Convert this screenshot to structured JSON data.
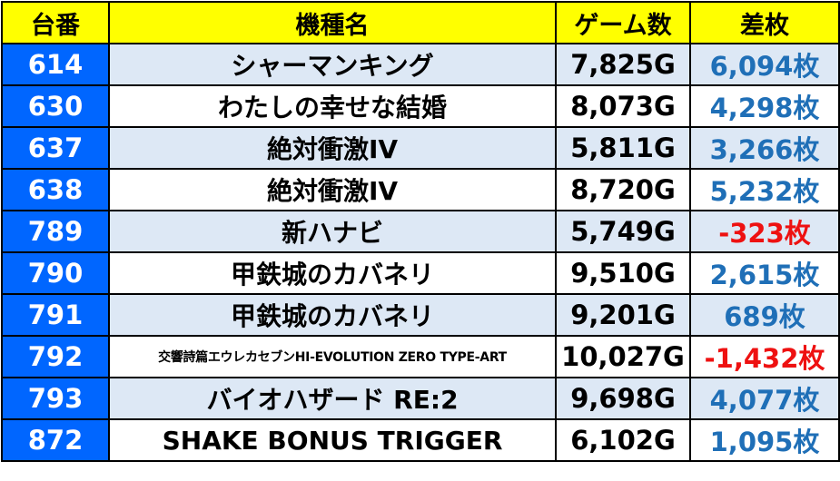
{
  "header": {
    "no": "台番",
    "name": "機種名",
    "games": "ゲーム数",
    "diff": "差枚"
  },
  "colors": {
    "header_bg": "#ffff00",
    "number_bg": "#0066ff",
    "row_shade": "#dde8f5",
    "positive": "#1f6fb7",
    "negative": "#ee1111"
  },
  "rows": [
    {
      "no": "614",
      "name": "シャーマンキング",
      "games": "7,825G",
      "diff": "6,094枚",
      "sign": "pos"
    },
    {
      "no": "630",
      "name": "わたしの幸せな結婚",
      "games": "8,073G",
      "diff": "4,298枚",
      "sign": "pos"
    },
    {
      "no": "637",
      "name": "絶対衝激IV",
      "games": "5,811G",
      "diff": "3,266枚",
      "sign": "pos"
    },
    {
      "no": "638",
      "name": "絶対衝激IV",
      "games": "8,720G",
      "diff": "5,232枚",
      "sign": "pos"
    },
    {
      "no": "789",
      "name": "新ハナビ",
      "games": "5,749G",
      "diff": "-323枚",
      "sign": "neg"
    },
    {
      "no": "790",
      "name": "甲鉄城のカバネリ",
      "games": "9,510G",
      "diff": "2,615枚",
      "sign": "pos"
    },
    {
      "no": "791",
      "name": "甲鉄城のカバネリ",
      "games": "9,201G",
      "diff": "689枚",
      "sign": "pos"
    },
    {
      "no": "792",
      "name": "交響詩篇エウレカセブンHI-EVOLUTION ZERO TYPE-ART",
      "games": "10,027G",
      "diff": "-1,432枚",
      "sign": "neg"
    },
    {
      "no": "793",
      "name": "バイオハザード RE:2",
      "games": "9,698G",
      "diff": "4,077枚",
      "sign": "pos"
    },
    {
      "no": "872",
      "name": "SHAKE BONUS TRIGGER",
      "games": "6,102G",
      "diff": "1,095枚",
      "sign": "pos"
    }
  ]
}
